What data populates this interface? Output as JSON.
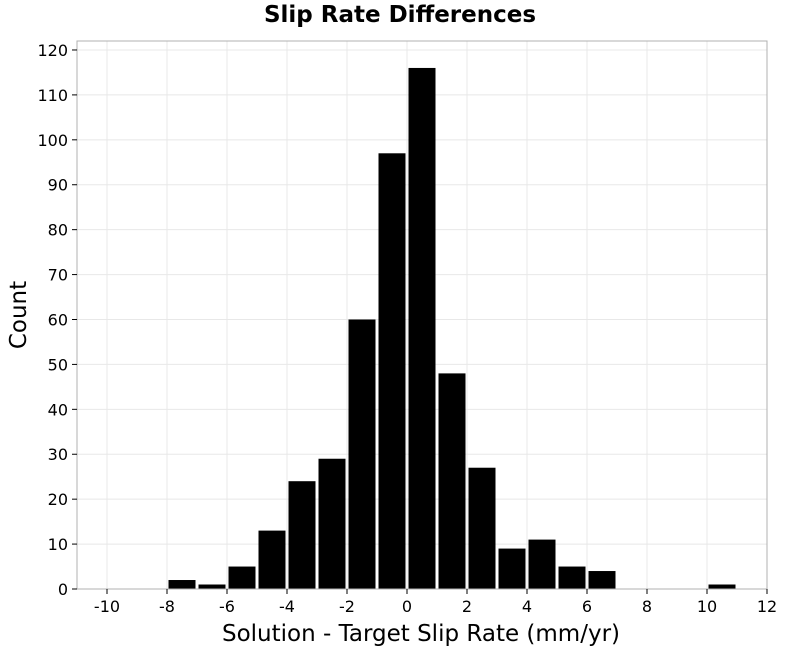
{
  "chart_data": {
    "type": "bar",
    "title": "Slip Rate Differences",
    "xlabel": "Solution - Target Slip Rate (mm/yr)",
    "ylabel": "Count",
    "xlim": [
      -11,
      12
    ],
    "ylim": [
      0,
      122
    ],
    "x_ticks": [
      -10,
      -8,
      -6,
      -4,
      -2,
      0,
      2,
      4,
      6,
      8,
      10,
      12
    ],
    "y_ticks": [
      0,
      10,
      20,
      30,
      40,
      50,
      60,
      70,
      80,
      90,
      100,
      110,
      120
    ],
    "bin_width": 1,
    "bins": [
      {
        "x": -7.5,
        "value": 2
      },
      {
        "x": -6.5,
        "value": 1
      },
      {
        "x": -5.5,
        "value": 5
      },
      {
        "x": -4.5,
        "value": 13
      },
      {
        "x": -3.5,
        "value": 24
      },
      {
        "x": -2.5,
        "value": 29
      },
      {
        "x": -1.5,
        "value": 60
      },
      {
        "x": -0.5,
        "value": 97
      },
      {
        "x": 0.5,
        "value": 116
      },
      {
        "x": 1.5,
        "value": 48
      },
      {
        "x": 2.5,
        "value": 27
      },
      {
        "x": 3.5,
        "value": 9
      },
      {
        "x": 4.5,
        "value": 11
      },
      {
        "x": 5.5,
        "value": 5
      },
      {
        "x": 6.5,
        "value": 4
      },
      {
        "x": 10.5,
        "value": 1
      }
    ],
    "grid": true,
    "colors": {
      "bar": "#000000",
      "grid": "#e8e8e8",
      "frame": "#b0b0b0"
    }
  }
}
